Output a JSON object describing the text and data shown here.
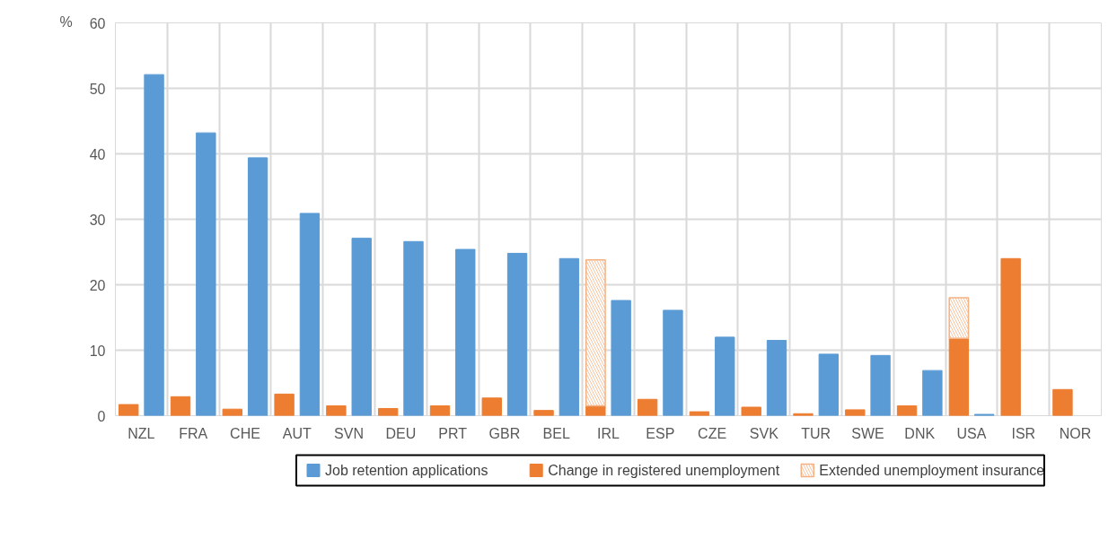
{
  "chart_data": {
    "type": "bar",
    "ylabel": "%",
    "categories": [
      "NZL",
      "FRA",
      "CHE",
      "AUT",
      "SVN",
      "DEU",
      "PRT",
      "GBR",
      "BEL",
      "IRL",
      "ESP",
      "CZE",
      "SVK",
      "TUR",
      "SWE",
      "DNK",
      "USA",
      "ISR",
      "NOR"
    ],
    "series": [
      {
        "name": "Job retention applications",
        "color": "#5b9bd5",
        "values": [
          52.1,
          43.2,
          39.4,
          30.9,
          27.1,
          26.6,
          25.4,
          24.8,
          24.0,
          17.6,
          16.1,
          12.0,
          11.5,
          9.4,
          9.2,
          6.9,
          0.2,
          null,
          null
        ]
      },
      {
        "name": "Change in registered unemployment",
        "color": "#ed7d31",
        "values": [
          1.7,
          2.9,
          1.0,
          3.3,
          1.5,
          1.1,
          1.5,
          2.7,
          0.8,
          1.5,
          2.5,
          0.6,
          1.3,
          0.3,
          0.9,
          1.5,
          11.8,
          24.0,
          4.0
        ]
      },
      {
        "name": "Extended unemployment insurance",
        "color": "#f4b183",
        "base": [
          null,
          null,
          null,
          null,
          null,
          null,
          null,
          null,
          null,
          1.5,
          null,
          null,
          null,
          null,
          null,
          null,
          11.8,
          null,
          null
        ],
        "values": [
          null,
          null,
          null,
          null,
          null,
          null,
          null,
          null,
          null,
          22.3,
          null,
          null,
          null,
          null,
          null,
          null,
          6.2,
          null,
          null
        ]
      }
    ],
    "ylim": [
      0,
      60
    ],
    "yticks": [
      0,
      10,
      20,
      30,
      40,
      50,
      60
    ],
    "grid": true,
    "legend": "bottom"
  }
}
